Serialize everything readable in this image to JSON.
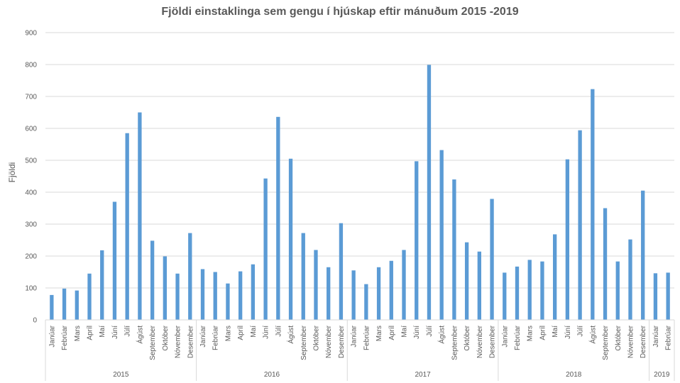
{
  "chart_data": {
    "type": "bar",
    "title": "Fjöldi einstaklinga sem gengu í hjúskap eftir mánuðum 2015 -2019",
    "xlabel": "",
    "ylabel": "Fjöldi",
    "ylim": [
      0,
      900
    ],
    "yticks": [
      0,
      100,
      200,
      300,
      400,
      500,
      600,
      700,
      800,
      900
    ],
    "grid": true,
    "legend": "none",
    "color": "#5B9BD5",
    "groups": [
      {
        "label": "2015",
        "months": [
          "Janúar",
          "Febrúar",
          "Mars",
          "Apríl",
          "Maí",
          "Júní",
          "Júlí",
          "Ágúst",
          "September",
          "Október",
          "Nóvember",
          "Desember"
        ],
        "values": [
          78,
          98,
          92,
          145,
          218,
          370,
          585,
          650,
          248,
          199,
          145,
          272
        ]
      },
      {
        "label": "2016",
        "months": [
          "Janúar",
          "Febrúar",
          "Mars",
          "Apríl",
          "Maí",
          "Júní",
          "Júlí",
          "Ágúst",
          "September",
          "Október",
          "Nóvember",
          "Desember"
        ],
        "values": [
          159,
          150,
          114,
          152,
          174,
          443,
          636,
          505,
          272,
          219,
          165,
          303
        ]
      },
      {
        "label": "2017",
        "months": [
          "Janúar",
          "Febrúar",
          "Mars",
          "Apríl",
          "Maí",
          "Júní",
          "Júlí",
          "Ágúst",
          "September",
          "Október",
          "Nóvember",
          "Desember"
        ],
        "values": [
          155,
          112,
          165,
          185,
          219,
          497,
          799,
          532,
          440,
          243,
          214,
          379
        ]
      },
      {
        "label": "2018",
        "months": [
          "Janúar",
          "Febrúar",
          "Mars",
          "Apríl",
          "Maí",
          "Júní",
          "Júlí",
          "Ágúst",
          "September",
          "Október",
          "Nóvember",
          "Desember"
        ],
        "values": [
          148,
          167,
          188,
          183,
          268,
          503,
          594,
          723,
          350,
          183,
          252,
          405
        ]
      },
      {
        "label": "2019",
        "months": [
          "Janúar",
          "Febrúar"
        ],
        "values": [
          146,
          148
        ]
      }
    ]
  }
}
